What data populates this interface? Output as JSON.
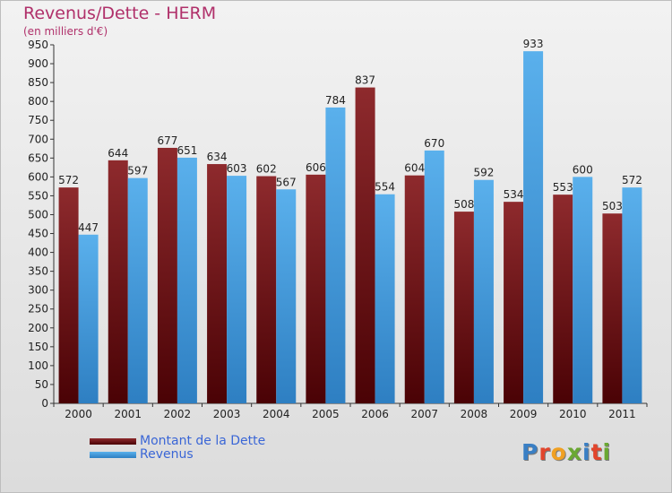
{
  "chart_data": {
    "type": "bar",
    "title": "Revenus/Dette - HERM",
    "subtitle": "(en milliers d'€)",
    "categories": [
      "2000",
      "2001",
      "2002",
      "2003",
      "2004",
      "2005",
      "2006",
      "2007",
      "2008",
      "2009",
      "2010",
      "2011"
    ],
    "series": [
      {
        "name": "Montant de la Dette",
        "values": [
          572,
          644,
          677,
          634,
          602,
          606,
          837,
          604,
          508,
          534,
          553,
          503
        ],
        "color": "#6b0d10"
      },
      {
        "name": "Revenus",
        "values": [
          447,
          597,
          651,
          603,
          567,
          784,
          554,
          670,
          592,
          933,
          600,
          572
        ],
        "color": "#4aa3e6"
      }
    ],
    "ylim": [
      0,
      950
    ],
    "yticks": [
      0,
      50,
      100,
      150,
      200,
      250,
      300,
      350,
      400,
      450,
      500,
      550,
      600,
      650,
      700,
      750,
      800,
      850,
      900,
      950
    ],
    "grid": false,
    "legend_position": "bottom-left",
    "colors": {
      "title": "#b0306a",
      "legend_text": "#3a66d6",
      "axis": "#333333"
    }
  },
  "logo": {
    "text": "Proxiti",
    "letter_colors": [
      "#3a7fc4",
      "#e2452c",
      "#f0a022",
      "#6aa832",
      "#3a7fc4",
      "#e2452c",
      "#6aa832"
    ]
  }
}
